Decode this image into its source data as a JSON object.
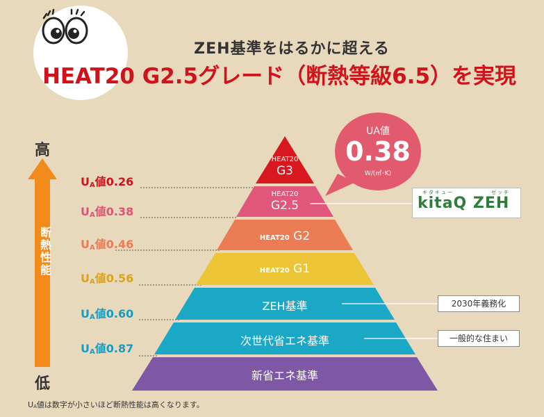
{
  "header": {
    "subtitle": "ZEH基準をはるかに超える",
    "title": "HEAT20 G2.5グレード（断熱等級6.5）を実現"
  },
  "axis": {
    "high": "高",
    "low": "低",
    "label": "断熱性能"
  },
  "ua_labels": [
    {
      "prefix": "U",
      "sub": "A",
      "text": "値0.26",
      "color": "#c9141e"
    },
    {
      "prefix": "U",
      "sub": "A",
      "text": "値0.38",
      "color": "#df5475"
    },
    {
      "prefix": "U",
      "sub": "A",
      "text": "値0.46",
      "color": "#ea7b55"
    },
    {
      "prefix": "U",
      "sub": "A",
      "text": "値0.56",
      "color": "#d9a31a"
    },
    {
      "prefix": "U",
      "sub": "A",
      "text": "値0.60",
      "color": "#179cc0"
    },
    {
      "prefix": "U",
      "sub": "A",
      "text": "値0.87",
      "color": "#179cc0"
    }
  ],
  "tiers": [
    {
      "line1": "HEAT20",
      "line2": "G3",
      "color": "#d7191f"
    },
    {
      "line1": "HEAT20",
      "line2": "G2.5",
      "color": "#e0577b"
    },
    {
      "line1": "HEAT20",
      "line2": "G2",
      "color": "#ec7c53"
    },
    {
      "line1": "HEAT20",
      "line2": "G1",
      "color": "#ebc536"
    },
    {
      "line1": "",
      "line2": "ZEH基準",
      "color": "#1ba8c6"
    },
    {
      "line1": "",
      "line2": "次世代省エネ基準",
      "color": "#1ba8c6"
    },
    {
      "line1": "",
      "line2": "新省エネ基準",
      "color": "#7e58a5"
    }
  ],
  "bubble": {
    "title": "UA値",
    "value": "0.38",
    "unit": "W/(㎡･K)",
    "color": "#e15a6e"
  },
  "kitaq": {
    "text": "kitaQ ZEH",
    "ruby1": "キタキュー",
    "ruby2": "ゼッチ"
  },
  "callouts": {
    "zeh": "2030年義務化",
    "next_gen": "一般的な住まい"
  },
  "footnote": {
    "prefix": "U",
    "sub": "A",
    "text": "値は数字が小さいほど断熱性能は高くなります。"
  }
}
